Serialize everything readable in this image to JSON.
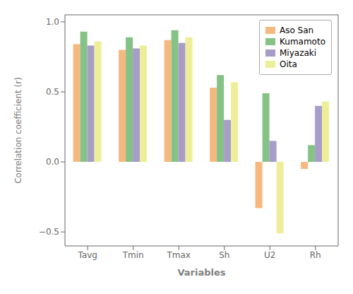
{
  "chart_data": {
    "type": "bar",
    "categories": [
      "Tavg",
      "Tmin",
      "Tmax",
      "Sh",
      "U2",
      "Rh"
    ],
    "series": [
      {
        "name": "Aso San",
        "color": "#F5B97F",
        "values": [
          0.84,
          0.8,
          0.87,
          0.53,
          -0.33,
          -0.05
        ]
      },
      {
        "name": "Kumamoto",
        "color": "#85C285",
        "values": [
          0.93,
          0.89,
          0.94,
          0.62,
          0.49,
          0.12
        ]
      },
      {
        "name": "Miyazaki",
        "color": "#A89CC8",
        "values": [
          0.83,
          0.81,
          0.85,
          0.3,
          0.15,
          0.4
        ]
      },
      {
        "name": "Oita",
        "color": "#EEEE99",
        "values": [
          0.86,
          0.83,
          0.89,
          0.57,
          -0.51,
          0.43
        ]
      }
    ],
    "xlabel": "Variables",
    "ylabel": "Correlation coefficient (r)",
    "ylim": [
      -0.6,
      1.05
    ],
    "yticks": [
      {
        "value": -0.5,
        "label": "−0.5"
      },
      {
        "value": 0,
        "label": "0.0"
      },
      0.5,
      {
        "value": 1,
        "label": "1.0"
      }
    ],
    "grid": false,
    "legend": "upper right"
  }
}
